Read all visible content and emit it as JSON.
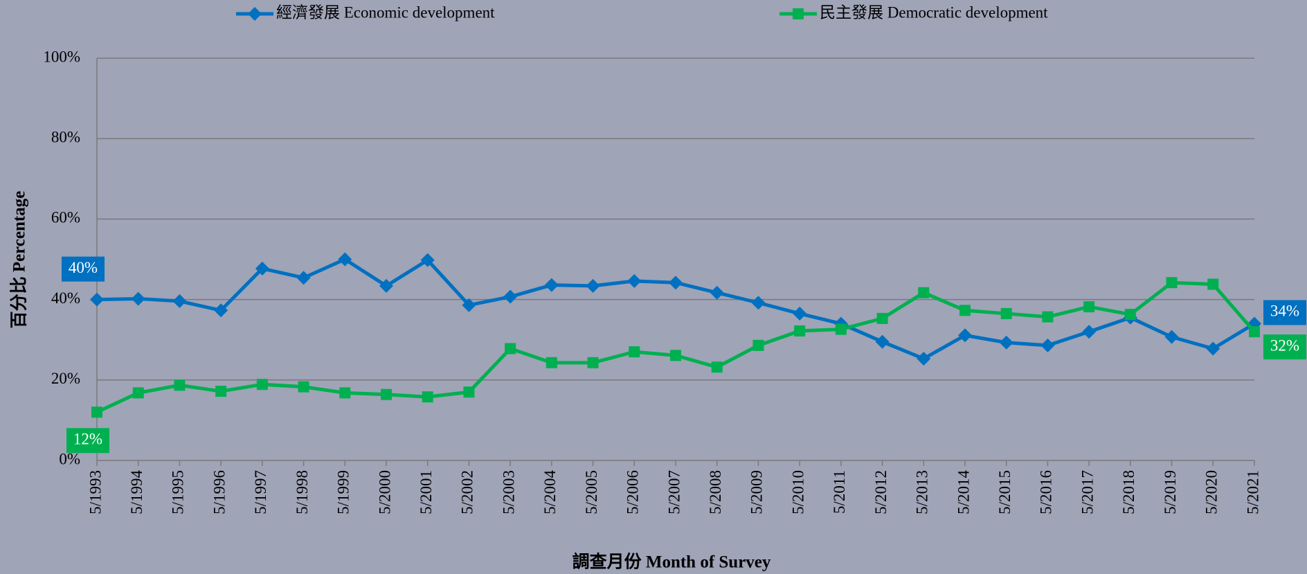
{
  "chart_data": {
    "type": "line",
    "x_label": "調查月份 Month of Survey",
    "y_label": "百分比 Percentage",
    "categories": [
      "5/1993",
      "5/1994",
      "5/1995",
      "5/1996",
      "5/1997",
      "5/1998",
      "5/1999",
      "5/2000",
      "5/2001",
      "5/2002",
      "5/2003",
      "5/2004",
      "5/2005",
      "5/2006",
      "5/2007",
      "5/2008",
      "5/2009",
      "5/2010",
      "5/2011",
      "5/2012",
      "5/2013",
      "5/2014",
      "5/2015",
      "5/2016",
      "5/2017",
      "5/2018",
      "5/2019",
      "5/2020",
      "5/2021"
    ],
    "series": [
      {
        "name": "經濟發展 Economic development",
        "color": "#0070c0",
        "marker": "diamond",
        "values": [
          40,
          40.2,
          39.6,
          37.3,
          47.7,
          45.4,
          50,
          43.4,
          49.8,
          38.6,
          40.7,
          43.6,
          43.4,
          44.6,
          44.2,
          41.7,
          39.2,
          36.5,
          34,
          29.5,
          25.3,
          31.1,
          29.3,
          28.6,
          32,
          35.5,
          30.7,
          27.8,
          34
        ],
        "value_labels": [
          "40%",
          null,
          null,
          null,
          null,
          null,
          null,
          null,
          null,
          null,
          null,
          null,
          null,
          null,
          null,
          null,
          null,
          null,
          null,
          null,
          null,
          null,
          null,
          null,
          null,
          null,
          null,
          null,
          "34%"
        ]
      },
      {
        "name": "民主發展 Democratic development",
        "color": "#00b050",
        "marker": "square",
        "values": [
          12,
          16.8,
          18.7,
          17.2,
          18.9,
          18.3,
          16.8,
          16.4,
          15.8,
          17,
          27.8,
          24.3,
          24.3,
          27,
          26.1,
          23.2,
          28.6,
          32.2,
          32.6,
          35.3,
          41.7,
          37.3,
          36.5,
          35.7,
          38.2,
          36.3,
          44.2,
          43.8,
          32
        ],
        "value_labels": [
          "12%",
          null,
          null,
          null,
          null,
          null,
          null,
          null,
          null,
          null,
          null,
          null,
          null,
          null,
          null,
          null,
          null,
          null,
          null,
          null,
          null,
          null,
          null,
          null,
          null,
          null,
          null,
          null,
          "32%"
        ]
      }
    ],
    "ylim": [
      0,
      100
    ],
    "yticks": [
      {
        "value": 0,
        "label": "0%"
      },
      {
        "value": 20,
        "label": "20%"
      },
      {
        "value": 40,
        "label": "40%"
      },
      {
        "value": 60,
        "label": "60%"
      },
      {
        "value": 80,
        "label": "80%"
      },
      {
        "value": 100,
        "label": "100%"
      }
    ],
    "grid": true,
    "legend": "top"
  }
}
